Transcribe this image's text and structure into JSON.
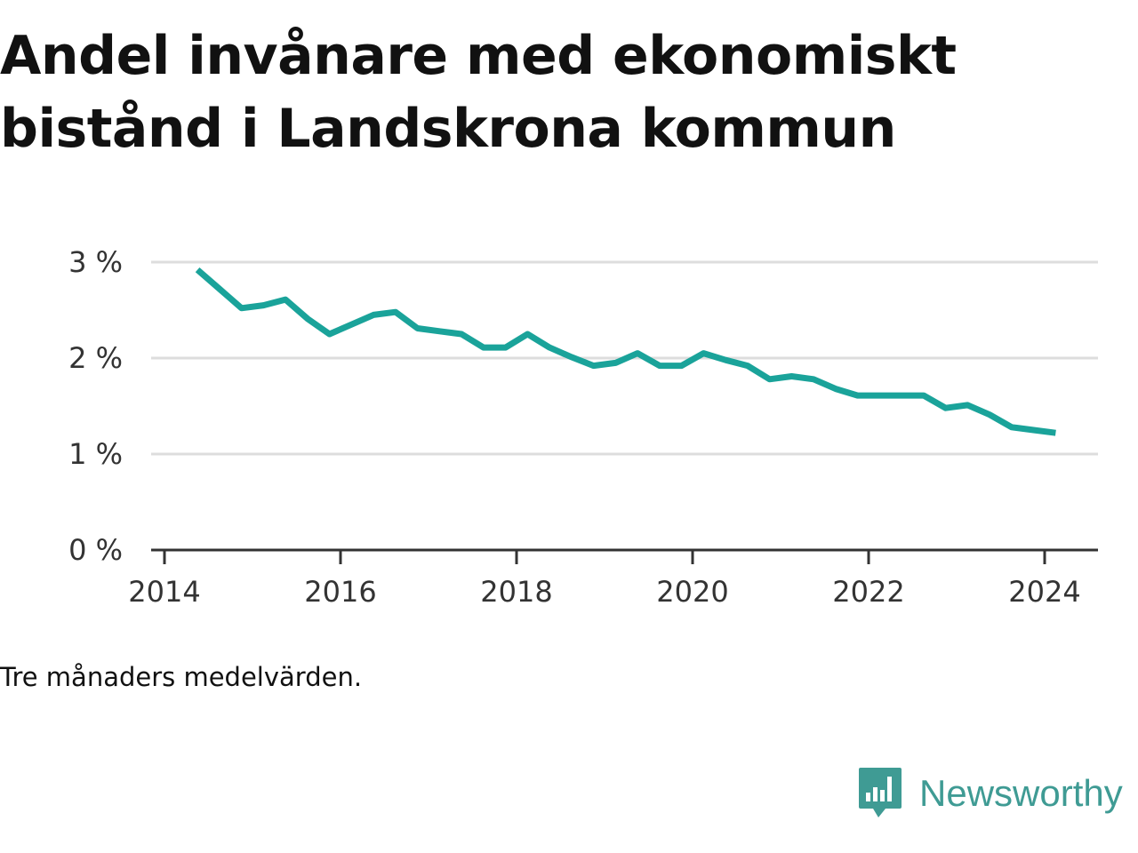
{
  "title": "Andel invånare med ekonomiskt bistånd i Landskrona kommun",
  "note": "Tre månaders medelvärden.",
  "brand": {
    "name": "Newsworthy",
    "color": "#3f9b94",
    "icon": "bar-chart-speech-bubble-icon"
  },
  "colors": {
    "line": "#1aa39a",
    "grid": "#dddddd",
    "axis": "#333333"
  },
  "chart_data": {
    "type": "line",
    "title": "Andel invånare med ekonomiskt bistånd i Landskrona kommun",
    "xlabel": "",
    "ylabel": "",
    "x_ticks": [
      "2014",
      "2016",
      "2018",
      "2020",
      "2022",
      "2024"
    ],
    "y_ticks": [
      "0 %",
      "1 %",
      "2 %",
      "3 %"
    ],
    "xlim": [
      2013.917,
      2024.667
    ],
    "ylim": [
      0,
      3
    ],
    "grid": true,
    "legend": "none",
    "series": [
      {
        "values": [
          {
            "x": "2014-05",
            "y": 2.92
          },
          {
            "x": "2014-08",
            "y": 2.72
          },
          {
            "x": "2014-11",
            "y": 2.52
          },
          {
            "x": "2015-02",
            "y": 2.55
          },
          {
            "x": "2015-05",
            "y": 2.61
          },
          {
            "x": "2015-08",
            "y": 2.41
          },
          {
            "x": "2015-11",
            "y": 2.25
          },
          {
            "x": "2016-02",
            "y": 2.35
          },
          {
            "x": "2016-05",
            "y": 2.45
          },
          {
            "x": "2016-08",
            "y": 2.48
          },
          {
            "x": "2016-11",
            "y": 2.31
          },
          {
            "x": "2017-02",
            "y": 2.28
          },
          {
            "x": "2017-05",
            "y": 2.25
          },
          {
            "x": "2017-08",
            "y": 2.11
          },
          {
            "x": "2017-11",
            "y": 2.11
          },
          {
            "x": "2018-02",
            "y": 2.25
          },
          {
            "x": "2018-05",
            "y": 2.11
          },
          {
            "x": "2018-08",
            "y": 2.01
          },
          {
            "x": "2018-11",
            "y": 1.92
          },
          {
            "x": "2019-02",
            "y": 1.95
          },
          {
            "x": "2019-05",
            "y": 2.05
          },
          {
            "x": "2019-08",
            "y": 1.92
          },
          {
            "x": "2019-11",
            "y": 1.92
          },
          {
            "x": "2020-02",
            "y": 2.05
          },
          {
            "x": "2020-05",
            "y": 1.98
          },
          {
            "x": "2020-08",
            "y": 1.92
          },
          {
            "x": "2020-11",
            "y": 1.78
          },
          {
            "x": "2021-02",
            "y": 1.81
          },
          {
            "x": "2021-05",
            "y": 1.78
          },
          {
            "x": "2021-08",
            "y": 1.68
          },
          {
            "x": "2021-11",
            "y": 1.61
          },
          {
            "x": "2022-02",
            "y": 1.61
          },
          {
            "x": "2022-05",
            "y": 1.61
          },
          {
            "x": "2022-08",
            "y": 1.61
          },
          {
            "x": "2022-11",
            "y": 1.48
          },
          {
            "x": "2023-02",
            "y": 1.51
          },
          {
            "x": "2023-05",
            "y": 1.41
          },
          {
            "x": "2023-08",
            "y": 1.28
          },
          {
            "x": "2023-11",
            "y": 1.25
          },
          {
            "x": "2024-02",
            "y": 1.22
          }
        ]
      }
    ]
  }
}
